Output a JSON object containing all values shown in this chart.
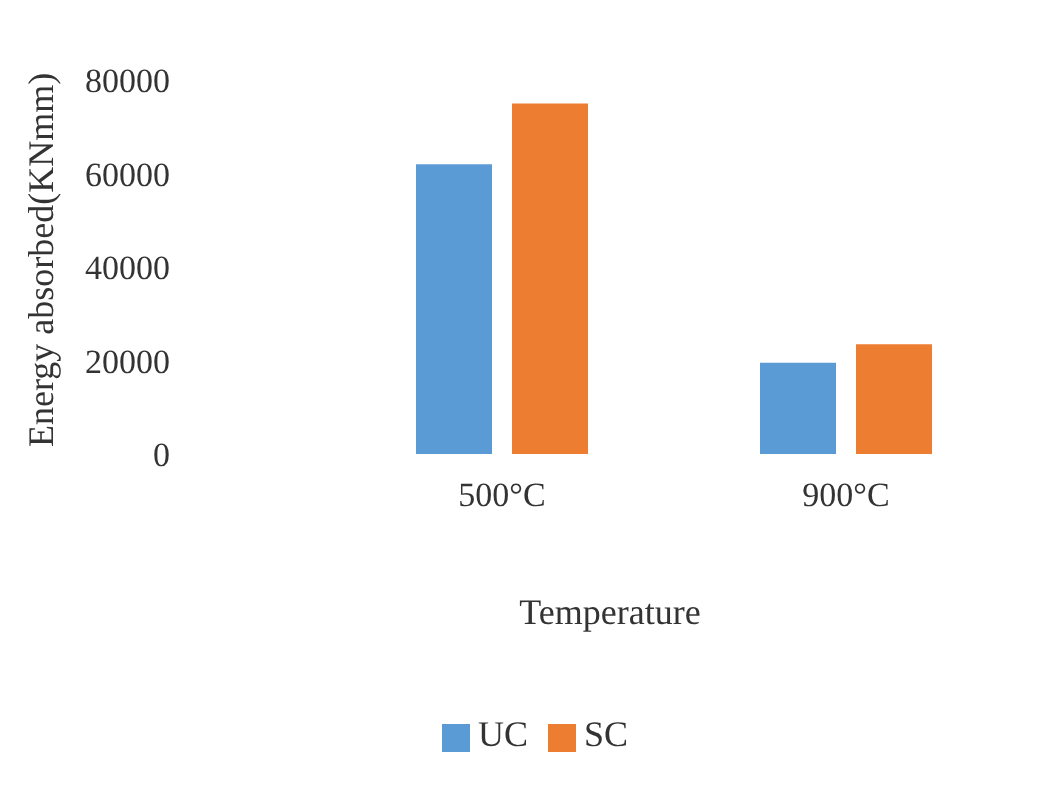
{
  "chart_data": {
    "type": "bar",
    "categories": [
      "500°C",
      "900°C"
    ],
    "series": [
      {
        "name": "UC",
        "color": "#5b9bd5",
        "values": [
          62000,
          19500
        ]
      },
      {
        "name": "SC",
        "color": "#ed7d31",
        "values": [
          75000,
          23500
        ]
      }
    ],
    "xlabel": "Temperature",
    "ylabel": "Energy absorbed(KNmm)",
    "ylim": [
      0,
      80000
    ],
    "yticks": [
      0,
      20000,
      40000,
      60000,
      80000
    ],
    "grid": false,
    "legend": "bottom"
  }
}
